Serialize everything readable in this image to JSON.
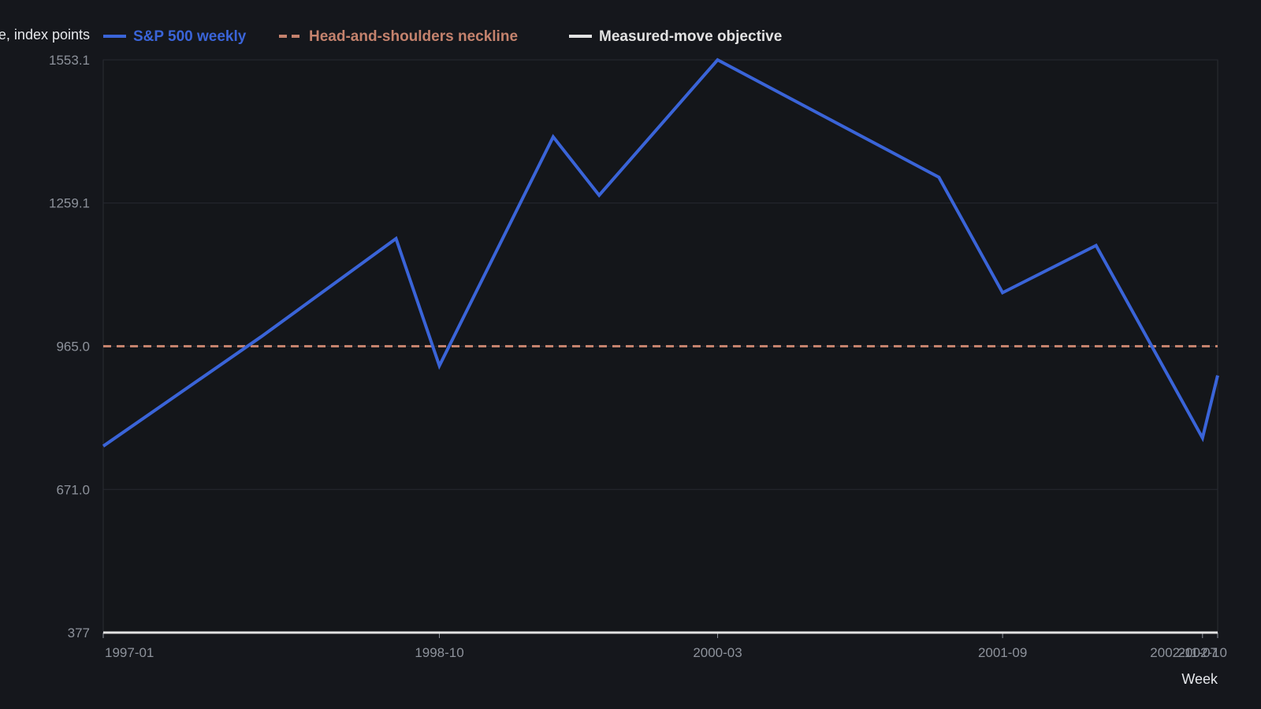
{
  "chart_data": {
    "type": "line",
    "ylabel": "Close, index points",
    "xlabel": "Week",
    "x_ticks": [
      "1997-01",
      "1998-10",
      "2000-03",
      "2001-09",
      "2002-10",
      "2002-11-07"
    ],
    "y_ticks": [
      "377",
      "671.0",
      "965.0",
      "1259.1",
      "1553.1"
    ],
    "ylim": [
      377,
      1553.1
    ],
    "x_domain": [
      "1997-01-02",
      "2002-11-07"
    ],
    "grid": true,
    "legend_position": "top-left",
    "series": [
      {
        "name": "S&P 500 weekly",
        "color": "#3a64d8",
        "style": "solid",
        "points": [
          {
            "x": "1997-01-02",
            "y": 760
          },
          {
            "x": "1997-11-01",
            "y": 985
          },
          {
            "x": "1998-07-17",
            "y": 1186
          },
          {
            "x": "1998-10-08",
            "y": 925
          },
          {
            "x": "1999-05-14",
            "y": 1395
          },
          {
            "x": "1999-08-10",
            "y": 1275
          },
          {
            "x": "2000-03-24",
            "y": 1553.1
          },
          {
            "x": "2001-05-22",
            "y": 1312
          },
          {
            "x": "2001-09-21",
            "y": 1075
          },
          {
            "x": "2002-03-19",
            "y": 1172
          },
          {
            "x": "2002-10-09",
            "y": 776.8
          },
          {
            "x": "2002-11-07",
            "y": 905
          }
        ]
      },
      {
        "name": "Head-and-shoulders neckline",
        "color": "#c4826d",
        "style": "dashed",
        "y": 965.0
      },
      {
        "name": "Measured-move objective",
        "color": "#e2e2e2",
        "style": "solid",
        "y": 377
      }
    ]
  }
}
